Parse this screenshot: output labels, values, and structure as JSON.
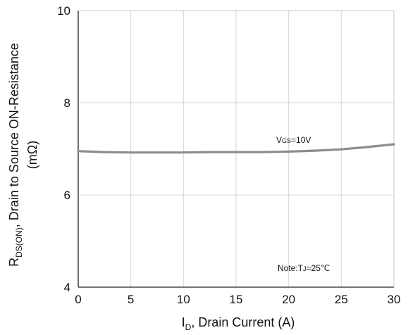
{
  "chart_data": {
    "type": "line",
    "xlabel": {
      "symbol": "I",
      "sub": "D",
      "text": ", Drain Current (A)"
    },
    "ylabel": {
      "line1": {
        "symbol": "R",
        "sub": "DS(ON)",
        "text": ", Drain to Source ON-Resistance"
      },
      "line2": "(mΩ)"
    },
    "xlim": [
      0,
      30
    ],
    "ylim": [
      4,
      10
    ],
    "xticks": [
      0,
      5,
      10,
      15,
      20,
      25,
      30
    ],
    "yticks": [
      4,
      6,
      8,
      10
    ],
    "grid": true,
    "series": [
      {
        "name": "VGS=10V",
        "color": "#8c8c8c",
        "x": [
          0,
          2.5,
          5,
          7.5,
          10,
          12.5,
          15,
          17.5,
          20,
          22.5,
          25,
          27.5,
          30
        ],
        "y": [
          6.95,
          6.93,
          6.92,
          6.92,
          6.92,
          6.93,
          6.93,
          6.93,
          6.94,
          6.96,
          6.99,
          7.04,
          7.1
        ]
      }
    ],
    "annotations": {
      "vgs": {
        "symbol": "V",
        "sub": "GS",
        "text": "=10V"
      },
      "note": {
        "prefix": "Note:T",
        "sub": "J",
        "text": "=25℃"
      }
    }
  }
}
